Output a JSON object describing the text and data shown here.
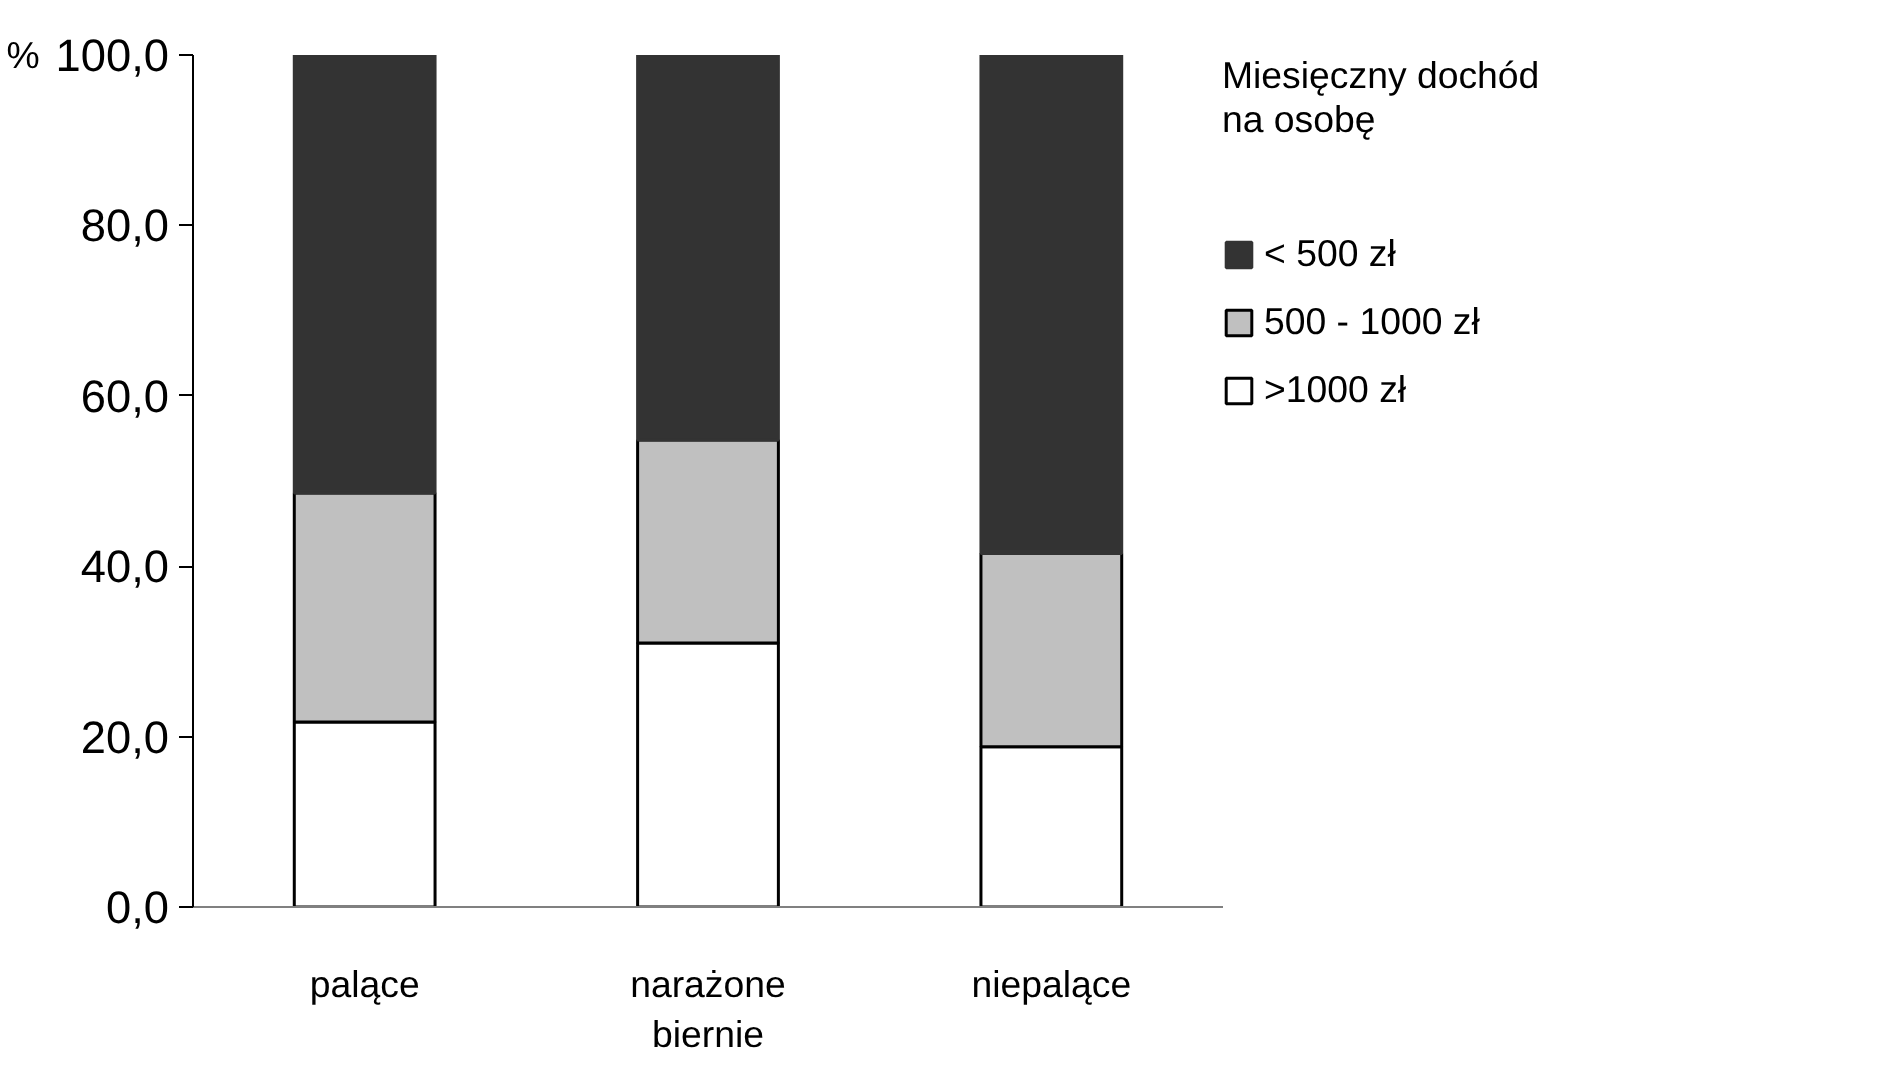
{
  "chart_data": {
    "type": "bar",
    "stacked": true,
    "ylabel": "%",
    "legend_title": "Miesięczny dochód na osobę",
    "categories": [
      "palące",
      "narażone biernie",
      "niepalące"
    ],
    "series": [
      {
        "name": ">1000 zł",
        "color": "#ffffff",
        "values": [
          21.7,
          31.0,
          18.8
        ]
      },
      {
        "name": "500 - 1000 zł",
        "color": "#c0c0c0",
        "values": [
          26.9,
          23.8,
          22.7
        ]
      },
      {
        "name": "< 500 zł",
        "color": "#333333",
        "values": [
          51.4,
          45.2,
          58.5
        ]
      }
    ],
    "ylim": [
      0,
      100
    ],
    "yticks": [
      {
        "value": 0,
        "label": "0,0"
      },
      {
        "value": 20,
        "label": "20,0"
      },
      {
        "value": 40,
        "label": "40,0"
      },
      {
        "value": 60,
        "label": "60,0"
      },
      {
        "value": 80,
        "label": "80,0"
      },
      {
        "value": 100,
        "label": "100,0"
      }
    ],
    "grid": false,
    "legend": "right"
  }
}
